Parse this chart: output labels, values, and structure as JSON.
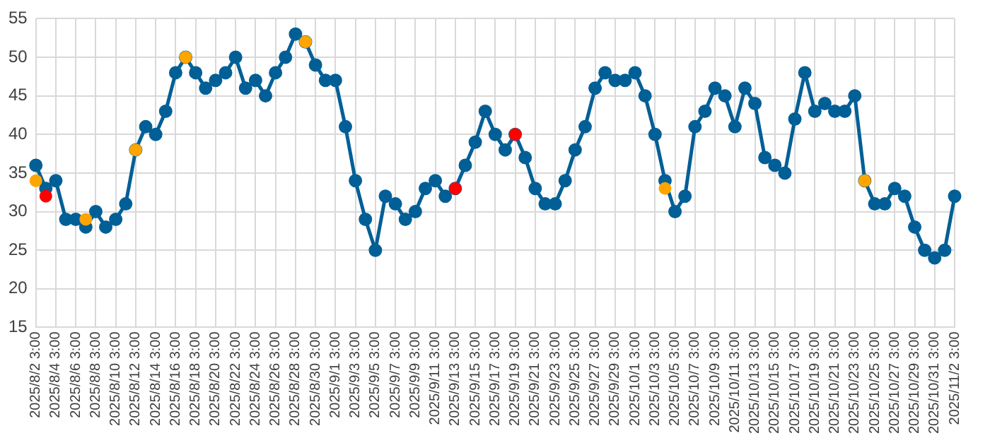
{
  "chart_data": {
    "type": "line",
    "categories": [
      "2025/8/2 3:00",
      null,
      "2025/8/4 3:00",
      null,
      "2025/8/6 3:00",
      null,
      "2025/8/8 3:00",
      null,
      "2025/8/10 3:00",
      null,
      "2025/8/12 3:00",
      null,
      "2025/8/14 3:00",
      null,
      "2025/8/16 3:00",
      null,
      "2025/8/18 3:00",
      null,
      "2025/8/20 3:00",
      null,
      "2025/8/22 3:00",
      null,
      "2025/8/24 3:00",
      null,
      "2025/8/26 3:00",
      null,
      "2025/8/28 3:00",
      null,
      "2025/8/30 3:00",
      null,
      "2025/9/1 3:00",
      null,
      "2025/9/3 3:00",
      null,
      "2025/9/5 3:00",
      null,
      "2025/9/7 3:00",
      null,
      "2025/9/9 3:00",
      null,
      "2025/9/11 3:00",
      null,
      "2025/9/13 3:00",
      null,
      "2025/9/15 3:00",
      null,
      "2025/9/17 3:00",
      null,
      "2025/9/19 3:00",
      null,
      "2025/9/21 3:00",
      null,
      "2025/9/23 3:00",
      null,
      "2025/9/25 3:00",
      null,
      "2025/9/27 3:00",
      null,
      "2025/9/29 3:00",
      null,
      "2025/10/1 3:00",
      null,
      "2025/10/3 3:00",
      null,
      "2025/10/5 3:00",
      null,
      "2025/10/7 3:00",
      null,
      "2025/10/9 3:00",
      null,
      "2025/10/11 3:00",
      null,
      "2025/10/13 3:00",
      null,
      "2025/10/15 3:00",
      null,
      "2025/10/17 3:00",
      null,
      "2025/10/19 3:00",
      null,
      "2025/10/21 3:00",
      null,
      "2025/10/23 3:00",
      null,
      "2025/10/25 3:00",
      null,
      "2025/10/27 3:00",
      null,
      "2025/10/29 3:00",
      null,
      "2025/10/31 3:00",
      null,
      "2025/11/2 3:00"
    ],
    "series": [
      {
        "type": "scatter",
        "color": "#ffa500",
        "values": [
          34,
          null,
          null,
          null,
          null,
          29,
          null,
          null,
          null,
          null,
          38,
          null,
          null,
          null,
          null,
          50,
          null,
          null,
          null,
          null,
          null,
          null,
          null,
          null,
          null,
          null,
          null,
          52,
          null,
          null,
          null,
          null,
          null,
          null,
          null,
          null,
          null,
          null,
          null,
          null,
          null,
          null,
          null,
          null,
          null,
          null,
          null,
          null,
          null,
          null,
          null,
          null,
          null,
          null,
          null,
          null,
          null,
          null,
          null,
          null,
          null,
          null,
          null,
          33,
          null,
          null,
          null,
          null,
          null,
          null,
          null,
          null,
          null,
          null,
          null,
          null,
          null,
          null,
          null,
          null,
          null,
          null,
          null,
          34,
          null,
          null,
          null,
          null,
          null,
          null,
          null,
          null,
          null
        ]
      },
      {
        "type": "scatter",
        "color": "#ff0000",
        "values": [
          null,
          32,
          null,
          null,
          null,
          null,
          null,
          null,
          null,
          null,
          null,
          null,
          null,
          null,
          null,
          null,
          null,
          null,
          null,
          null,
          null,
          null,
          null,
          null,
          null,
          null,
          null,
          null,
          null,
          null,
          null,
          null,
          null,
          null,
          null,
          null,
          null,
          null,
          null,
          null,
          null,
          null,
          33,
          null,
          null,
          null,
          null,
          null,
          40,
          null,
          null,
          null,
          null,
          null,
          null,
          null,
          null,
          null,
          null,
          null,
          null,
          null,
          null,
          null,
          null,
          null,
          null,
          null,
          null,
          null,
          null,
          null,
          null,
          null,
          null,
          null,
          null,
          null,
          null,
          null,
          null,
          null,
          null,
          null,
          null,
          null,
          null,
          null,
          null,
          null,
          null,
          null,
          null
        ]
      },
      {
        "type": "line",
        "color": "#005f96",
        "values": [
          36,
          33,
          34,
          29,
          29,
          28,
          30,
          28,
          29,
          31,
          38,
          41,
          40,
          43,
          48,
          50,
          48,
          46,
          47,
          48,
          50,
          46,
          47,
          45,
          48,
          50,
          53,
          52,
          49,
          47,
          47,
          41,
          34,
          29,
          25,
          32,
          31,
          29,
          30,
          33,
          34,
          32,
          33,
          36,
          39,
          43,
          40,
          38,
          40,
          37,
          33,
          31,
          31,
          34,
          38,
          41,
          46,
          48,
          47,
          47,
          48,
          45,
          40,
          34,
          30,
          32,
          41,
          43,
          46,
          45,
          41,
          46,
          44,
          37,
          36,
          35,
          42,
          48,
          43,
          44,
          43,
          43,
          45,
          34,
          31,
          31,
          33,
          32,
          28,
          25,
          24,
          25,
          32
        ]
      }
    ],
    "ylim": [
      15,
      55
    ],
    "yticks": [
      15,
      20,
      25,
      30,
      35,
      40,
      45,
      50,
      55
    ],
    "grid": true,
    "legend": false,
    "marker": "circle",
    "line_style": "solid"
  }
}
